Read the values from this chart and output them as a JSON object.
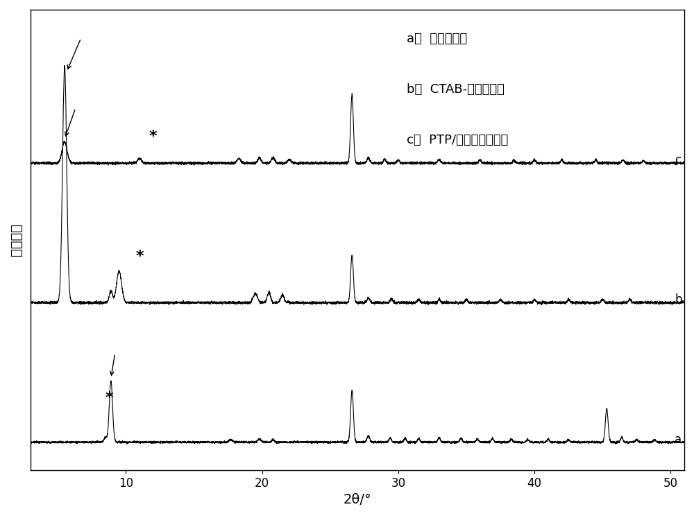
{
  "xlabel": "2θ/°",
  "ylabel": "衍射强度",
  "xlim": [
    3,
    51
  ],
  "xticks": [
    10,
    20,
    30,
    40,
    50
  ],
  "background_color": "#ffffff",
  "line_color": "#000000",
  "figsize": [
    10.0,
    7.44
  ],
  "dpi": 100,
  "legend_lines": [
    "a：  微晶白云母",
    "b：  CTAB-微晶白云母",
    "c：  PTP/有机微晶白云母"
  ]
}
